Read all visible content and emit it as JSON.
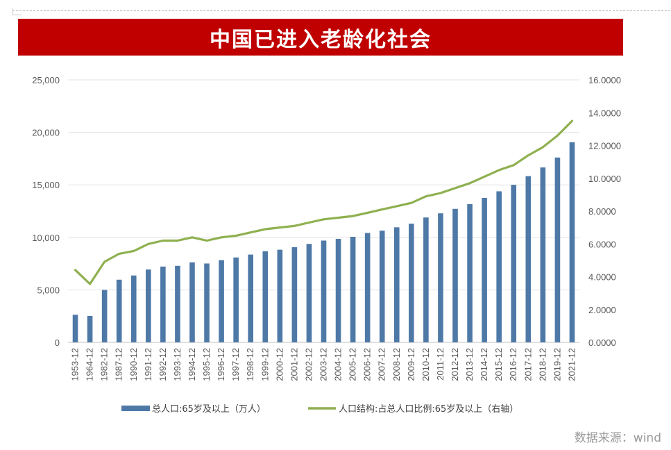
{
  "title": "中国已进入老龄化社会",
  "source": "数据来源：wind",
  "chart_data": {
    "type": "bar+line",
    "categories": [
      "1953-12",
      "1964-12",
      "1982-12",
      "1987-12",
      "1990-12",
      "1991-12",
      "1992-12",
      "1993-12",
      "1994-12",
      "1995-12",
      "1996-12",
      "1997-12",
      "1998-12",
      "1999-12",
      "2000-12",
      "2001-12",
      "2002-12",
      "2003-12",
      "2004-12",
      "2005-12",
      "2006-12",
      "2007-12",
      "2008-12",
      "2009-12",
      "2010-12",
      "2011-12",
      "2012-12",
      "2013-12",
      "2014-12",
      "2015-12",
      "2016-12",
      "2017-12",
      "2018-12",
      "2019-12",
      "2021-12"
    ],
    "series": [
      {
        "name": "总人口:65岁及以上（万人）",
        "type": "bar",
        "axis": "left",
        "color": "#4e79a7",
        "values": [
          2630,
          2520,
          4991,
          5968,
          6368,
          6938,
          7218,
          7289,
          7622,
          7510,
          7833,
          8085,
          8359,
          8679,
          8821,
          9062,
          9377,
          9692,
          9857,
          10055,
          10419,
          10636,
          10956,
          11307,
          11894,
          12288,
          12714,
          13161,
          13755,
          14386,
          15003,
          15831,
          16658,
          17603,
          19064
        ]
      },
      {
        "name": "人口结构:占总人口比例:65岁及以上（右轴）",
        "type": "line",
        "axis": "right",
        "color": "#8fb050",
        "values": [
          4.41,
          3.56,
          4.91,
          5.4,
          5.57,
          6.0,
          6.2,
          6.2,
          6.4,
          6.2,
          6.4,
          6.5,
          6.7,
          6.9,
          7.0,
          7.1,
          7.3,
          7.5,
          7.6,
          7.7,
          7.9,
          8.1,
          8.3,
          8.5,
          8.9,
          9.1,
          9.4,
          9.7,
          10.1,
          10.5,
          10.8,
          11.4,
          11.9,
          12.6,
          13.5
        ]
      }
    ],
    "y_left": {
      "min": 0,
      "max": 25000,
      "ticks": [
        "0",
        "5,000",
        "10,000",
        "15,000",
        "20,000",
        "25,000"
      ]
    },
    "y_right": {
      "min": 0,
      "max": 16,
      "ticks": [
        "0.0000",
        "2.0000",
        "4.0000",
        "6.0000",
        "8.0000",
        "10.0000",
        "12.0000",
        "14.0000",
        "16.0000"
      ]
    },
    "grid": true,
    "legend": "bottom"
  }
}
